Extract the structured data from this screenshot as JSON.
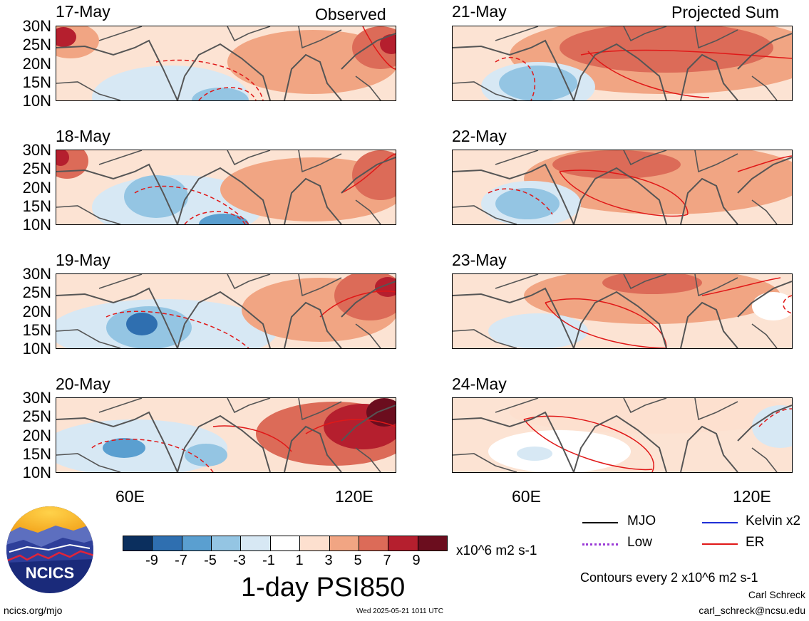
{
  "header": {
    "left_corner": "Observed",
    "right_corner": "Projected Sum"
  },
  "panels": {
    "left": [
      "17-May",
      "18-May",
      "19-May",
      "20-May"
    ],
    "right": [
      "21-May",
      "22-May",
      "23-May",
      "24-May"
    ]
  },
  "axes": {
    "lat_labels": [
      "30N",
      "25N",
      "20N",
      "15N",
      "10N"
    ],
    "lon_labels": [
      "60E",
      "120E"
    ]
  },
  "legend": {
    "mjo": "MJO",
    "kelvin": "Kelvin x2",
    "low": "Low",
    "er": "ER",
    "contours": "Contours every 2 x10^6 m2 s-1",
    "author": "Carl Schreck",
    "email": "carl_schreck@ncsu.edu",
    "colors": {
      "mjo": "#000000",
      "kelvin": "#1f2fd6",
      "low": "#9a3ad6",
      "er": "#e01818"
    }
  },
  "colorbar": {
    "labels": [
      "-9",
      "-7",
      "-5",
      "-3",
      "-1",
      "1",
      "3",
      "5",
      "7",
      "9"
    ],
    "units": "x10^6 m2 s-1",
    "colors": [
      "#0b2f5e",
      "#2f6fb0",
      "#5a9fd0",
      "#94c5e3",
      "#d7e8f4",
      "#ffffff",
      "#fde0cf",
      "#f1a583",
      "#dc6b58",
      "#b51f2e",
      "#6b0d1e"
    ]
  },
  "footer": {
    "title": "1-day PSI850",
    "url": "ncics.org/mjo",
    "timestamp": "Wed 2025-05-21 1011 UTC",
    "logo_text": "NCICS"
  }
}
